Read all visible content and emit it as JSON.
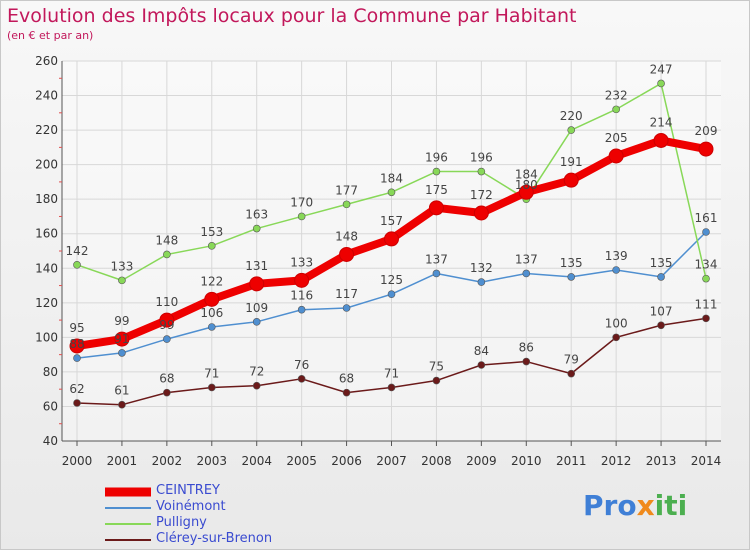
{
  "header": {
    "title": "Evolution des Impôts locaux pour la Commune par Habitant",
    "subtitle": "(en € et par an)"
  },
  "logo": {
    "parts": [
      "Pro",
      "x",
      "iti"
    ],
    "colors": [
      "#3f7fd6",
      "#f08a1c",
      "#4caf50"
    ]
  },
  "chart_data": {
    "type": "line",
    "categories": [
      "2000",
      "2001",
      "2002",
      "2003",
      "2004",
      "2005",
      "2006",
      "2007",
      "2008",
      "2009",
      "2010",
      "2011",
      "2012",
      "2013",
      "2014"
    ],
    "ylim": [
      40,
      260
    ],
    "yticks": [
      40,
      60,
      80,
      100,
      120,
      140,
      160,
      180,
      200,
      220,
      240,
      260
    ],
    "grid": true,
    "legend_position": "bottom-left",
    "series": [
      {
        "name": "CEINTREY",
        "color": "#ee0000",
        "values": [
          95,
          99,
          110,
          122,
          131,
          133,
          148,
          157,
          175,
          172,
          184,
          191,
          205,
          214,
          209
        ]
      },
      {
        "name": "Voinémont",
        "color": "#4f8fd0",
        "values": [
          88,
          91,
          99,
          106,
          109,
          116,
          117,
          125,
          137,
          132,
          137,
          135,
          139,
          135,
          161
        ]
      },
      {
        "name": "Pulligny",
        "color": "#88d858",
        "values": [
          142,
          133,
          148,
          153,
          163,
          170,
          177,
          184,
          196,
          196,
          180,
          220,
          232,
          247,
          134
        ]
      },
      {
        "name": "Clérey-sur-Brenon",
        "color": "#6b1a1a",
        "values": [
          62,
          61,
          68,
          71,
          72,
          76,
          68,
          71,
          75,
          84,
          86,
          79,
          100,
          107,
          111
        ]
      }
    ]
  }
}
